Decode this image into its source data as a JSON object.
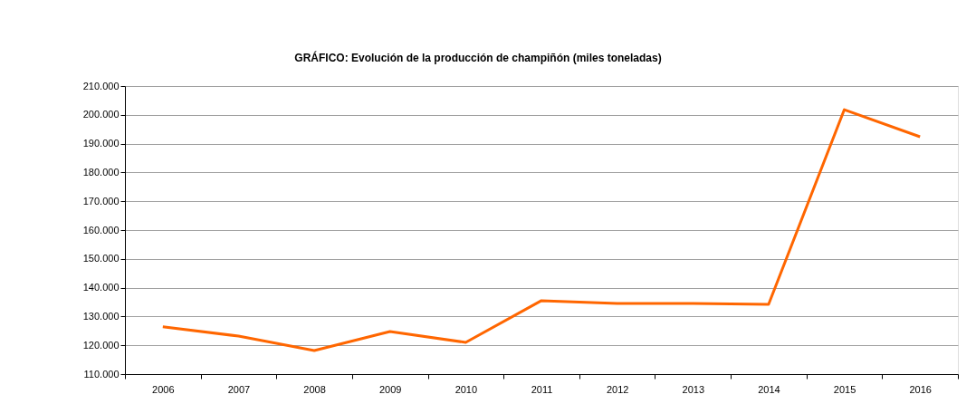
{
  "chart_data": {
    "type": "line",
    "title": "GRÁFICO: Evolución de la producción de champiñón (miles toneladas)",
    "categories": [
      "2006",
      "2007",
      "2008",
      "2009",
      "2010",
      "2011",
      "2012",
      "2013",
      "2014",
      "2015",
      "2016"
    ],
    "series": [
      {
        "color": "#ff6600",
        "values": [
          126400,
          123200,
          118200,
          124800,
          121000,
          135500,
          134500,
          134500,
          134200,
          201800,
          192400
        ]
      }
    ],
    "ylim": [
      110000,
      210000
    ],
    "yticks": [
      {
        "value": 110000,
        "label": "110.000"
      },
      {
        "value": 120000,
        "label": "120.000"
      },
      {
        "value": 130000,
        "label": "130.000"
      },
      {
        "value": 140000,
        "label": "140.000"
      },
      {
        "value": 150000,
        "label": "150.000"
      },
      {
        "value": 160000,
        "label": "160.000"
      },
      {
        "value": 170000,
        "label": "170.000"
      },
      {
        "value": 180000,
        "label": "180.000"
      },
      {
        "value": 190000,
        "label": "190.000"
      },
      {
        "value": 200000,
        "label": "200.000"
      },
      {
        "value": 210000,
        "label": "210.000"
      }
    ],
    "grid": "y",
    "marker": "none",
    "line_style": "solid"
  }
}
